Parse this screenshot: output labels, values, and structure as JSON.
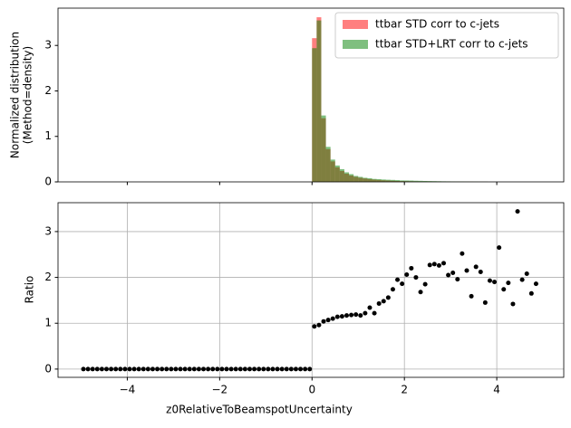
{
  "chart_data": [
    {
      "type": "histogram",
      "ylabel": [
        "Normalized distribution",
        "(Method=density)"
      ],
      "bins": [
        0,
        0.1,
        0.2,
        0.3,
        0.4,
        0.5,
        0.6,
        0.7,
        0.8,
        0.9,
        1.0,
        1.1,
        1.2,
        1.3,
        1.4,
        1.5,
        1.6,
        1.7,
        1.8,
        1.9,
        2.0,
        2.1,
        2.2,
        2.3,
        2.4,
        2.5,
        2.6,
        2.7,
        2.8,
        2.9,
        3.0,
        3.1,
        3.2,
        3.3,
        3.4,
        3.5,
        3.6,
        3.7,
        3.8
      ],
      "series": [
        {
          "name": "ttbar STD corr to c-jets",
          "color": "#ff0000",
          "alpha": 0.5,
          "values": [
            3.16,
            3.62,
            1.4,
            0.72,
            0.45,
            0.32,
            0.24,
            0.18,
            0.14,
            0.11,
            0.09,
            0.075,
            0.06,
            0.05,
            0.042,
            0.035,
            0.03,
            0.025,
            0.02,
            0.017,
            0.015,
            0.013,
            0.011,
            0.01,
            0.009,
            0.008,
            0.007,
            0.006,
            0.005,
            0.005,
            0.004,
            0.004,
            0.003,
            0.003,
            0.003,
            0.002,
            0.002,
            0.002
          ]
        },
        {
          "name": "ttbar STD+LRT corr to c-jets",
          "color": "#008000",
          "alpha": 0.5,
          "values": [
            2.94,
            3.55,
            1.46,
            0.77,
            0.49,
            0.36,
            0.28,
            0.21,
            0.17,
            0.13,
            0.11,
            0.09,
            0.08,
            0.065,
            0.06,
            0.052,
            0.047,
            0.043,
            0.039,
            0.032,
            0.031,
            0.029,
            0.025,
            0.023,
            0.02,
            0.018,
            0.016,
            0.014,
            0.012,
            0.011,
            0.01,
            0.009,
            0.008,
            0.007,
            0.006,
            0.005,
            0.004,
            0.004
          ]
        }
      ],
      "xlim": [
        -5.5,
        5.45
      ],
      "ylim": [
        0,
        3.82
      ],
      "yticks": [
        0,
        1,
        2,
        3
      ],
      "xticks": [
        -4,
        -2,
        0,
        2,
        4
      ],
      "legend": "upper right",
      "grid": false
    },
    {
      "type": "scatter",
      "xlabel": "z0RelativeToBeamspotUncertainty",
      "ylabel": "Ratio",
      "x": [
        -4.95,
        -4.85,
        -4.75,
        -4.65,
        -4.55,
        -4.45,
        -4.35,
        -4.25,
        -4.15,
        -4.05,
        -3.95,
        -3.85,
        -3.75,
        -3.65,
        -3.55,
        -3.45,
        -3.35,
        -3.25,
        -3.15,
        -3.05,
        -2.95,
        -2.85,
        -2.75,
        -2.65,
        -2.55,
        -2.45,
        -2.35,
        -2.25,
        -2.15,
        -2.05,
        -1.95,
        -1.85,
        -1.75,
        -1.65,
        -1.55,
        -1.45,
        -1.35,
        -1.25,
        -1.15,
        -1.05,
        -0.95,
        -0.85,
        -0.75,
        -0.65,
        -0.55,
        -0.45,
        -0.35,
        -0.25,
        -0.15,
        -0.05,
        0.05,
        0.15,
        0.25,
        0.35,
        0.45,
        0.55,
        0.65,
        0.75,
        0.85,
        0.95,
        1.05,
        1.15,
        1.25,
        1.35,
        1.45,
        1.55,
        1.65,
        1.75,
        1.85,
        1.95,
        2.05,
        2.15,
        2.25,
        2.35,
        2.45,
        2.55,
        2.65,
        2.75,
        2.85,
        2.95,
        3.05,
        3.15,
        3.25,
        3.35,
        3.45,
        3.55,
        3.65,
        3.75,
        3.85,
        3.95,
        4.05,
        4.15,
        4.25,
        4.35,
        4.45,
        4.55,
        4.65,
        4.75,
        4.85
      ],
      "values": [
        0,
        0,
        0,
        0,
        0,
        0,
        0,
        0,
        0,
        0,
        0,
        0,
        0,
        0,
        0,
        0,
        0,
        0,
        0,
        0,
        0,
        0,
        0,
        0,
        0,
        0,
        0,
        0,
        0,
        0,
        0,
        0,
        0,
        0,
        0,
        0,
        0,
        0,
        0,
        0,
        0,
        0,
        0,
        0,
        0,
        0,
        0,
        0,
        0,
        0,
        0.93,
        0.96,
        1.04,
        1.07,
        1.1,
        1.14,
        1.15,
        1.17,
        1.18,
        1.19,
        1.17,
        1.22,
        1.34,
        1.22,
        1.43,
        1.48,
        1.56,
        1.74,
        1.95,
        1.86,
        2.06,
        2.2,
        2.0,
        1.68,
        1.85,
        2.27,
        2.29,
        2.26,
        2.31,
        2.05,
        2.1,
        1.96,
        2.52,
        2.15,
        1.59,
        2.23,
        2.12,
        1.45,
        1.93,
        1.9,
        2.65,
        1.74,
        1.88,
        1.42,
        3.44,
        1.95,
        2.08,
        1.65,
        1.86
      ],
      "color": "#000000",
      "xlim": [
        -5.5,
        5.45
      ],
      "ylim": [
        -0.18,
        3.63
      ],
      "yticks": [
        0,
        1,
        2,
        3
      ],
      "xticks": [
        {
          "value": -4,
          "label": "−4"
        },
        {
          "value": -2,
          "label": "−2"
        },
        0,
        2,
        4
      ],
      "grid": true
    }
  ]
}
